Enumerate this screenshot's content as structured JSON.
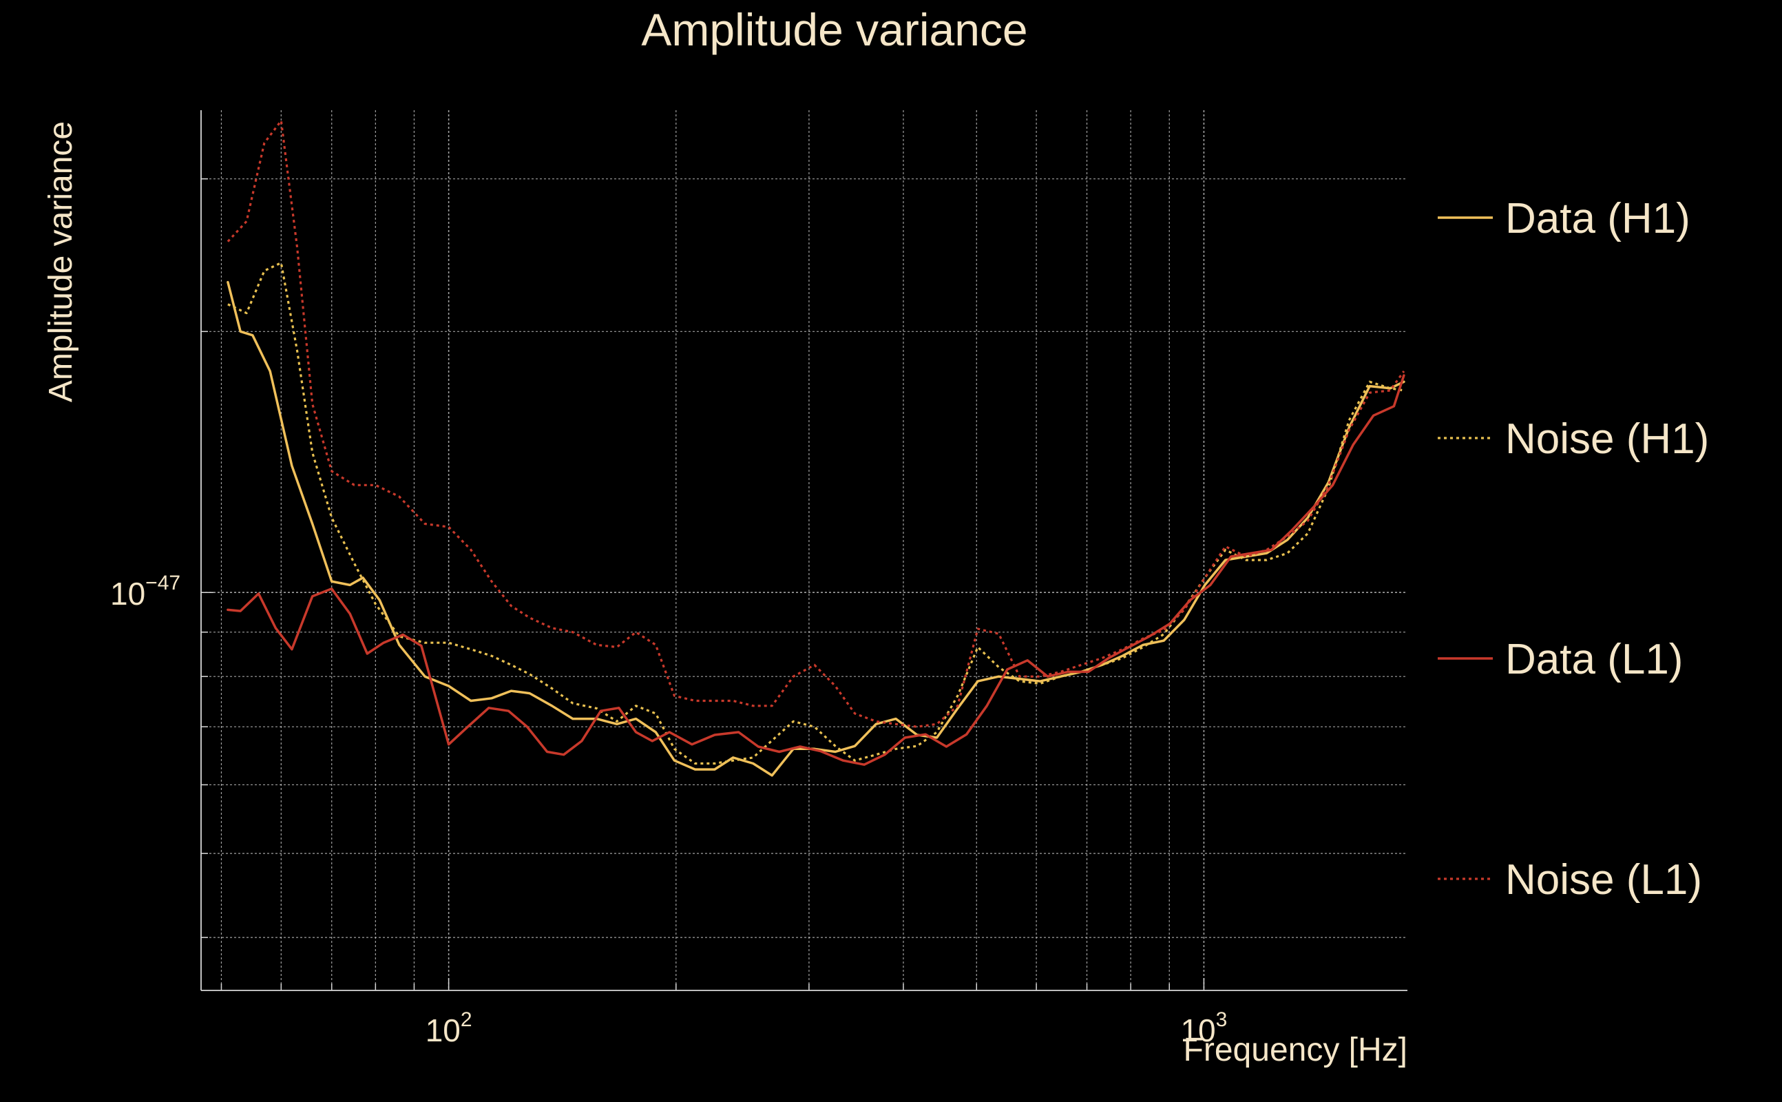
{
  "colors": {
    "background": "#000000",
    "text": "#f5e6c8",
    "grid": "#d8d8d8",
    "data_h1": "#f0c05a",
    "noise_h1": "#e8c050",
    "data_l1": "#c8392b",
    "noise_l1": "#c8392b"
  },
  "chart_data": {
    "type": "line",
    "title": "Amplitude variance",
    "xlabel": "Frequency [Hz]",
    "ylabel": "Amplitude variance",
    "xscale": "log",
    "yscale": "log",
    "xlim": [
      47,
      1860
    ],
    "ylim": [
      3.475e-48,
      3.6e-47
    ],
    "grid": true,
    "legend_position": "right",
    "x_tick_labels": [
      {
        "value": 100,
        "base": "10",
        "exponent": "2"
      },
      {
        "value": 1000,
        "base": "10",
        "exponent": "3"
      }
    ],
    "y_tick_labels": [
      {
        "value": 1e-47,
        "base": "10",
        "exponent": "−47"
      }
    ],
    "series": [
      {
        "name": "Data (H1)",
        "style": "solid",
        "color": "#f0c05a",
        "points": [
          [
            51,
            2.28e-47
          ],
          [
            53,
            2e-47
          ],
          [
            55,
            1.98e-47
          ],
          [
            58,
            1.8e-47
          ],
          [
            62,
            1.4e-47
          ],
          [
            66,
            1.2e-47
          ],
          [
            70,
            1.03e-47
          ],
          [
            74,
            1.02e-47
          ],
          [
            77,
            1.04e-47
          ],
          [
            81,
            9.8e-48
          ],
          [
            86,
            8.7e-48
          ],
          [
            93,
            8e-48
          ],
          [
            100,
            7.8e-48
          ],
          [
            107,
            7.5e-48
          ],
          [
            114,
            7.55e-48
          ],
          [
            121,
            7.7e-48
          ],
          [
            128,
            7.65e-48
          ],
          [
            137,
            7.4e-48
          ],
          [
            146,
            7.15e-48
          ],
          [
            157,
            7.15e-48
          ],
          [
            167,
            7.05e-48
          ],
          [
            177,
            7.15e-48
          ],
          [
            188,
            6.9e-48
          ],
          [
            199,
            6.4e-48
          ],
          [
            212,
            6.25e-48
          ],
          [
            225,
            6.25e-48
          ],
          [
            238,
            6.45e-48
          ],
          [
            253,
            6.35e-48
          ],
          [
            268,
            6.15e-48
          ],
          [
            286,
            6.6e-48
          ],
          [
            305,
            6.6e-48
          ],
          [
            325,
            6.55e-48
          ],
          [
            345,
            6.65e-48
          ],
          [
            368,
            7.05e-48
          ],
          [
            391,
            7.15e-48
          ],
          [
            417,
            6.85e-48
          ],
          [
            443,
            6.8e-48
          ],
          [
            472,
            7.35e-48
          ],
          [
            502,
            7.9e-48
          ],
          [
            535,
            8e-48
          ],
          [
            570,
            7.95e-48
          ],
          [
            607,
            7.9e-48
          ],
          [
            646,
            8e-48
          ],
          [
            688,
            8.1e-48
          ],
          [
            733,
            8.25e-48
          ],
          [
            780,
            8.45e-48
          ],
          [
            831,
            8.7e-48
          ],
          [
            885,
            8.8e-48
          ],
          [
            942,
            9.3e-48
          ],
          [
            1003,
            1.02e-47
          ],
          [
            1068,
            1.09e-47
          ],
          [
            1137,
            1.1e-47
          ],
          [
            1211,
            1.11e-47
          ],
          [
            1290,
            1.15e-47
          ],
          [
            1373,
            1.22e-47
          ],
          [
            1462,
            1.34e-47
          ],
          [
            1557,
            1.55e-47
          ],
          [
            1658,
            1.73e-47
          ],
          [
            1765,
            1.72e-47
          ],
          [
            1840,
            1.75e-47
          ]
        ]
      },
      {
        "name": "Noise (H1)",
        "style": "dotted",
        "color": "#e8c050",
        "points": [
          [
            51,
            2.15e-47
          ],
          [
            54,
            2.1e-47
          ],
          [
            57,
            2.35e-47
          ],
          [
            60,
            2.4e-47
          ],
          [
            63,
            1.9e-47
          ],
          [
            66,
            1.45e-47
          ],
          [
            70,
            1.22e-47
          ],
          [
            75,
            1.08e-47
          ],
          [
            80,
            9.7e-48
          ],
          [
            86,
            8.9e-48
          ],
          [
            93,
            8.75e-48
          ],
          [
            100,
            8.75e-48
          ],
          [
            107,
            8.6e-48
          ],
          [
            114,
            8.45e-48
          ],
          [
            121,
            8.25e-48
          ],
          [
            128,
            8.05e-48
          ],
          [
            137,
            7.75e-48
          ],
          [
            146,
            7.45e-48
          ],
          [
            157,
            7.35e-48
          ],
          [
            167,
            7.1e-48
          ],
          [
            177,
            7.4e-48
          ],
          [
            188,
            7.25e-48
          ],
          [
            199,
            6.6e-48
          ],
          [
            212,
            6.35e-48
          ],
          [
            225,
            6.35e-48
          ],
          [
            238,
            6.4e-48
          ],
          [
            253,
            6.45e-48
          ],
          [
            268,
            6.75e-48
          ],
          [
            286,
            7.1e-48
          ],
          [
            305,
            7e-48
          ],
          [
            325,
            6.65e-48
          ],
          [
            345,
            6.4e-48
          ],
          [
            368,
            6.5e-48
          ],
          [
            391,
            6.6e-48
          ],
          [
            417,
            6.65e-48
          ],
          [
            443,
            6.9e-48
          ],
          [
            472,
            7.6e-48
          ],
          [
            502,
            8.65e-48
          ],
          [
            535,
            8.2e-48
          ],
          [
            570,
            7.9e-48
          ],
          [
            607,
            7.85e-48
          ],
          [
            646,
            8e-48
          ],
          [
            688,
            8.1e-48
          ],
          [
            733,
            8.25e-48
          ],
          [
            780,
            8.4e-48
          ],
          [
            831,
            8.65e-48
          ],
          [
            885,
            8.95e-48
          ],
          [
            942,
            9.6e-48
          ],
          [
            1003,
            1.04e-47
          ],
          [
            1068,
            1.12e-47
          ],
          [
            1137,
            1.09e-47
          ],
          [
            1211,
            1.09e-47
          ],
          [
            1290,
            1.11e-47
          ],
          [
            1373,
            1.17e-47
          ],
          [
            1462,
            1.32e-47
          ],
          [
            1557,
            1.58e-47
          ],
          [
            1658,
            1.75e-47
          ],
          [
            1765,
            1.72e-47
          ],
          [
            1840,
            1.71e-47
          ]
        ]
      },
      {
        "name": "Data (L1)",
        "style": "solid",
        "color": "#c8392b",
        "points": [
          [
            51,
            9.55e-48
          ],
          [
            53,
            9.52e-48
          ],
          [
            56,
            9.97e-48
          ],
          [
            59,
            9.1e-48
          ],
          [
            62,
            8.6e-48
          ],
          [
            66,
            9.9e-48
          ],
          [
            70,
            1.01e-47
          ],
          [
            74,
            9.45e-48
          ],
          [
            78,
            8.5e-48
          ],
          [
            82,
            8.75e-48
          ],
          [
            87,
            8.94e-48
          ],
          [
            92,
            8.68e-48
          ],
          [
            100,
            6.68e-48
          ],
          [
            106,
            7e-48
          ],
          [
            113,
            7.36e-48
          ],
          [
            120,
            7.3e-48
          ],
          [
            127,
            7e-48
          ],
          [
            135,
            6.55e-48
          ],
          [
            142,
            6.5e-48
          ],
          [
            150,
            6.74e-48
          ],
          [
            159,
            7.3e-48
          ],
          [
            168,
            7.36e-48
          ],
          [
            177,
            6.9e-48
          ],
          [
            186,
            6.74e-48
          ],
          [
            196,
            6.9e-48
          ],
          [
            210,
            6.68e-48
          ],
          [
            225,
            6.85e-48
          ],
          [
            242,
            6.9e-48
          ],
          [
            257,
            6.64e-48
          ],
          [
            274,
            6.55e-48
          ],
          [
            292,
            6.64e-48
          ],
          [
            311,
            6.56e-48
          ],
          [
            333,
            6.4e-48
          ],
          [
            355,
            6.33e-48
          ],
          [
            378,
            6.5e-48
          ],
          [
            402,
            6.8e-48
          ],
          [
            428,
            6.86e-48
          ],
          [
            456,
            6.64e-48
          ],
          [
            485,
            6.86e-48
          ],
          [
            516,
            7.4e-48
          ],
          [
            549,
            8.15e-48
          ],
          [
            584,
            8.35e-48
          ],
          [
            621,
            8e-48
          ],
          [
            661,
            8.1e-48
          ],
          [
            703,
            8.1e-48
          ],
          [
            748,
            8.4e-48
          ],
          [
            796,
            8.65e-48
          ],
          [
            847,
            8.9e-48
          ],
          [
            901,
            9.2e-48
          ],
          [
            959,
            9.8e-48
          ],
          [
            1020,
            1.02e-47
          ],
          [
            1086,
            1.1e-47
          ],
          [
            1155,
            1.11e-47
          ],
          [
            1229,
            1.12e-47
          ],
          [
            1308,
            1.18e-47
          ],
          [
            1392,
            1.25e-47
          ],
          [
            1481,
            1.33e-47
          ],
          [
            1576,
            1.48e-47
          ],
          [
            1677,
            1.6e-47
          ],
          [
            1785,
            1.64e-47
          ],
          [
            1840,
            1.78e-47
          ]
        ]
      },
      {
        "name": "Noise (L1)",
        "style": "dotted",
        "color": "#c8392b",
        "points": [
          [
            51,
            2.54e-47
          ],
          [
            54,
            2.68e-47
          ],
          [
            57,
            3.3e-47
          ],
          [
            60,
            3.5e-47
          ],
          [
            63,
            2.5e-47
          ],
          [
            66,
            1.65e-47
          ],
          [
            70,
            1.38e-47
          ],
          [
            75,
            1.33e-47
          ],
          [
            80,
            1.33e-47
          ],
          [
            86,
            1.29e-47
          ],
          [
            93,
            1.2e-47
          ],
          [
            100,
            1.19e-47
          ],
          [
            107,
            1.12e-47
          ],
          [
            114,
            1.03e-47
          ],
          [
            121,
            9.65e-48
          ],
          [
            128,
            9.35e-48
          ],
          [
            137,
            9.1e-48
          ],
          [
            146,
            9e-48
          ],
          [
            157,
            8.7e-48
          ],
          [
            167,
            8.65e-48
          ],
          [
            177,
            9e-48
          ],
          [
            188,
            8.7e-48
          ],
          [
            199,
            7.6e-48
          ],
          [
            212,
            7.5e-48
          ],
          [
            225,
            7.5e-48
          ],
          [
            238,
            7.5e-48
          ],
          [
            253,
            7.4e-48
          ],
          [
            268,
            7.4e-48
          ],
          [
            286,
            8e-48
          ],
          [
            305,
            8.25e-48
          ],
          [
            325,
            7.8e-48
          ],
          [
            345,
            7.25e-48
          ],
          [
            368,
            7.1e-48
          ],
          [
            391,
            7.05e-48
          ],
          [
            417,
            7e-48
          ],
          [
            443,
            7.05e-48
          ],
          [
            472,
            7.4e-48
          ],
          [
            502,
            9.08e-48
          ],
          [
            535,
            8.96e-48
          ],
          [
            570,
            8e-48
          ],
          [
            607,
            8e-48
          ],
          [
            646,
            8.1e-48
          ],
          [
            688,
            8.25e-48
          ],
          [
            733,
            8.4e-48
          ],
          [
            780,
            8.6e-48
          ],
          [
            831,
            8.85e-48
          ],
          [
            885,
            9.05e-48
          ],
          [
            942,
            9.55e-48
          ],
          [
            1003,
            1.04e-47
          ],
          [
            1068,
            1.13e-47
          ],
          [
            1137,
            1.1e-47
          ],
          [
            1211,
            1.12e-47
          ],
          [
            1290,
            1.16e-47
          ],
          [
            1373,
            1.21e-47
          ],
          [
            1462,
            1.33e-47
          ],
          [
            1557,
            1.54e-47
          ],
          [
            1658,
            1.7e-47
          ],
          [
            1765,
            1.71e-47
          ],
          [
            1840,
            1.8e-47
          ]
        ]
      }
    ]
  }
}
